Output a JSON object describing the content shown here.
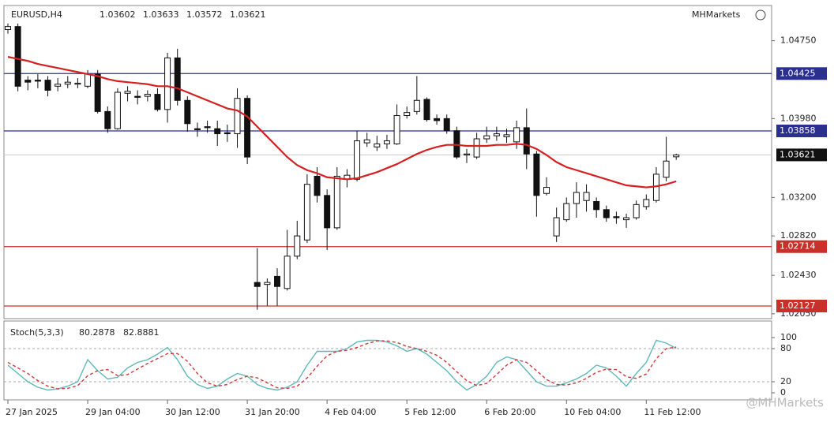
{
  "chart_data": [
    {
      "type": "candlestick",
      "symbol": "EURUSD,H4",
      "logo": "MHMarkets",
      "watermark": "@MHMarkets",
      "categories": [
        "27 Jan 2025",
        null,
        null,
        null,
        null,
        null,
        null,
        null,
        "29 Jan 04:00",
        null,
        null,
        null,
        null,
        null,
        null,
        null,
        "30 Jan 12:00",
        null,
        null,
        null,
        null,
        null,
        null,
        null,
        "31 Jan 20:00",
        null,
        null,
        null,
        null,
        null,
        null,
        null,
        "4 Feb 04:00",
        null,
        null,
        null,
        null,
        null,
        null,
        null,
        "5 Feb 12:00",
        null,
        null,
        null,
        null,
        null,
        null,
        null,
        "6 Feb 20:00",
        null,
        null,
        null,
        null,
        null,
        null,
        null,
        "10 Feb 04:00",
        null,
        null,
        null,
        null,
        null,
        null,
        null,
        "11 Feb 12:00",
        null,
        null,
        null
      ],
      "open": [
        1.0486,
        1.0489,
        1.0436,
        1.0436,
        1.0436,
        1.043,
        1.0432,
        1.0432,
        1.043,
        1.0442,
        1.0405,
        1.0388,
        1.0423,
        1.042,
        1.042,
        1.0422,
        1.0407,
        1.0458,
        1.0416,
        1.0388,
        1.039,
        1.0388,
        1.0384,
        1.0383,
        1.0418,
        1.0236,
        1.0234,
        1.0242,
        1.023,
        1.0262,
        1.0278,
        1.0341,
        1.0322,
        1.029,
        1.0338,
        1.0338,
        1.0374,
        1.037,
        1.0373,
        1.0373,
        1.0401,
        1.0405,
        1.0417,
        1.0398,
        1.0398,
        1.0386,
        1.0362,
        1.036,
        1.0378,
        1.0381,
        1.038,
        1.0375,
        1.0389,
        1.0363,
        1.0324,
        1.0282,
        1.0298,
        1.0314,
        1.0317,
        1.0316,
        1.0308,
        1.0301,
        1.0298,
        1.03,
        1.0311,
        1.0317,
        1.034,
        1.03602
      ],
      "high": [
        1.0492,
        1.0492,
        1.044,
        1.0442,
        1.044,
        1.0438,
        1.044,
        1.0438,
        1.0446,
        1.0446,
        1.041,
        1.0428,
        1.043,
        1.0426,
        1.0426,
        1.0428,
        1.0463,
        1.0467,
        1.042,
        1.0394,
        1.0396,
        1.0396,
        1.0392,
        1.0428,
        1.0421,
        1.027,
        1.024,
        1.025,
        1.0288,
        1.0297,
        1.0343,
        1.035,
        1.0328,
        1.035,
        1.0348,
        1.0386,
        1.0384,
        1.0381,
        1.0382,
        1.0412,
        1.041,
        1.044,
        1.0419,
        1.0402,
        1.0402,
        1.039,
        1.0368,
        1.0384,
        1.039,
        1.039,
        1.0388,
        1.0396,
        1.0408,
        1.0366,
        1.034,
        1.031,
        1.032,
        1.0335,
        1.0333,
        1.032,
        1.0312,
        1.0306,
        1.0304,
        1.0317,
        1.0323,
        1.035,
        1.038,
        1.03633
      ],
      "low": [
        1.0482,
        1.0425,
        1.0426,
        1.0428,
        1.042,
        1.0425,
        1.0428,
        1.0428,
        1.0428,
        1.0403,
        1.0384,
        1.0387,
        1.0415,
        1.0412,
        1.0415,
        1.0405,
        1.0394,
        1.0411,
        1.0385,
        1.038,
        1.0384,
        1.0371,
        1.0375,
        1.0369,
        1.0353,
        1.0209,
        1.0213,
        1.0213,
        1.0228,
        1.0259,
        1.0275,
        1.0315,
        1.0268,
        1.0288,
        1.033,
        1.0336,
        1.037,
        1.0366,
        1.0368,
        1.0372,
        1.0398,
        1.0402,
        1.0395,
        1.0392,
        1.0383,
        1.0358,
        1.0354,
        1.0358,
        1.0374,
        1.0376,
        1.0374,
        1.0368,
        1.0348,
        1.0301,
        1.0322,
        1.0276,
        1.0296,
        1.03,
        1.0306,
        1.03,
        1.0296,
        1.0294,
        1.029,
        1.0298,
        1.0308,
        1.0315,
        1.0336,
        1.03572
      ],
      "close": [
        1.0489,
        1.043,
        1.0434,
        1.0435,
        1.0426,
        1.0432,
        1.0434,
        1.0433,
        1.0442,
        1.0405,
        1.0388,
        1.0424,
        1.0425,
        1.0419,
        1.0422,
        1.0407,
        1.0458,
        1.0416,
        1.0393,
        1.0387,
        1.0389,
        1.0383,
        1.0383,
        1.0418,
        1.036,
        1.0232,
        1.0236,
        1.0232,
        1.0262,
        1.0282,
        1.0333,
        1.0322,
        1.029,
        1.0341,
        1.0342,
        1.0376,
        1.0377,
        1.0373,
        1.0376,
        1.0401,
        1.0404,
        1.0416,
        1.0397,
        1.0396,
        1.0386,
        1.036,
        1.0363,
        1.0378,
        1.0381,
        1.0383,
        1.0382,
        1.0389,
        1.0363,
        1.0322,
        1.033,
        1.03,
        1.0314,
        1.0325,
        1.0325,
        1.0308,
        1.03,
        1.03,
        1.03,
        1.0313,
        1.0318,
        1.0343,
        1.0356,
        1.03621
      ],
      "ma": {
        "color": "#d42020",
        "values": [
          1.0459,
          1.0457,
          1.0455,
          1.0452,
          1.045,
          1.0448,
          1.0446,
          1.0444,
          1.0442,
          1.044,
          1.0437,
          1.0435,
          1.0434,
          1.0433,
          1.0432,
          1.043,
          1.043,
          1.0428,
          1.0424,
          1.042,
          1.0416,
          1.0412,
          1.0408,
          1.0406,
          1.04,
          1.039,
          1.038,
          1.037,
          1.036,
          1.0352,
          1.0347,
          1.0344,
          1.034,
          1.0339,
          1.0338,
          1.0339,
          1.0342,
          1.0345,
          1.0349,
          1.0353,
          1.0358,
          1.0363,
          1.0367,
          1.037,
          1.0372,
          1.0372,
          1.0371,
          1.0371,
          1.0371,
          1.0372,
          1.0372,
          1.0373,
          1.0372,
          1.0368,
          1.0362,
          1.0355,
          1.035,
          1.0347,
          1.0344,
          1.0341,
          1.0338,
          1.0335,
          1.0332,
          1.0331,
          1.033,
          1.0331,
          1.0333,
          1.0336
        ]
      },
      "levels": [
        {
          "value": 1.04425,
          "color": "#2b2f8f"
        },
        {
          "value": 1.03858,
          "color": "#2b2f8f"
        },
        {
          "value": 1.02714,
          "color": "#c8302c"
        },
        {
          "value": 1.02127,
          "color": "#c8302c"
        }
      ],
      "last_color": "#111111",
      "ylim": [
        1.0201,
        1.0509
      ],
      "yticks": [
        {
          "value": 1.0475,
          "label": "1.04750"
        },
        {
          "value": 1.0398,
          "label": "1.03980"
        },
        {
          "value": 1.032,
          "label": "1.03200"
        },
        {
          "value": 1.0282,
          "label": "1.02820"
        },
        {
          "value": 1.0243,
          "label": "1.02430"
        },
        {
          "value": 1.0205,
          "label": "1.02050"
        }
      ]
    },
    {
      "type": "line",
      "title": "Stoch(5,3,3)",
      "ylim": [
        0,
        100
      ],
      "yticks": [
        0,
        20,
        80,
        100
      ],
      "levels": [
        80,
        20
      ],
      "series": [
        {
          "color": "#5fb8b8",
          "dashed": false,
          "values": [
            50,
            35,
            20,
            10,
            5,
            7,
            12,
            20,
            60,
            40,
            25,
            28,
            45,
            55,
            60,
            70,
            82,
            60,
            30,
            15,
            8,
            12,
            25,
            35,
            30,
            15,
            8,
            5,
            10,
            20,
            50,
            75,
            75,
            75,
            80,
            92,
            95,
            95,
            92,
            85,
            75,
            80,
            70,
            55,
            40,
            20,
            5,
            15,
            30,
            55,
            65,
            60,
            40,
            20,
            12,
            12,
            18,
            25,
            35,
            50,
            45,
            30,
            12,
            35,
            55,
            95,
            90,
            80.2878
          ]
        },
        {
          "color": "#d03a3a",
          "dashed": true,
          "values": [
            55,
            45,
            35,
            22,
            12,
            7,
            8,
            13,
            31,
            40,
            42,
            31,
            33,
            43,
            53,
            62,
            71,
            71,
            57,
            35,
            18,
            12,
            15,
            24,
            30,
            27,
            18,
            9,
            8,
            12,
            27,
            48,
            67,
            75,
            77,
            82,
            89,
            94,
            94,
            91,
            84,
            80,
            75,
            68,
            55,
            38,
            22,
            13,
            17,
            33,
            50,
            60,
            55,
            40,
            24,
            15,
            14,
            18,
            26,
            37,
            43,
            42,
            29,
            26,
            34,
            62,
            80,
            82.8881
          ]
        }
      ]
    }
  ]
}
